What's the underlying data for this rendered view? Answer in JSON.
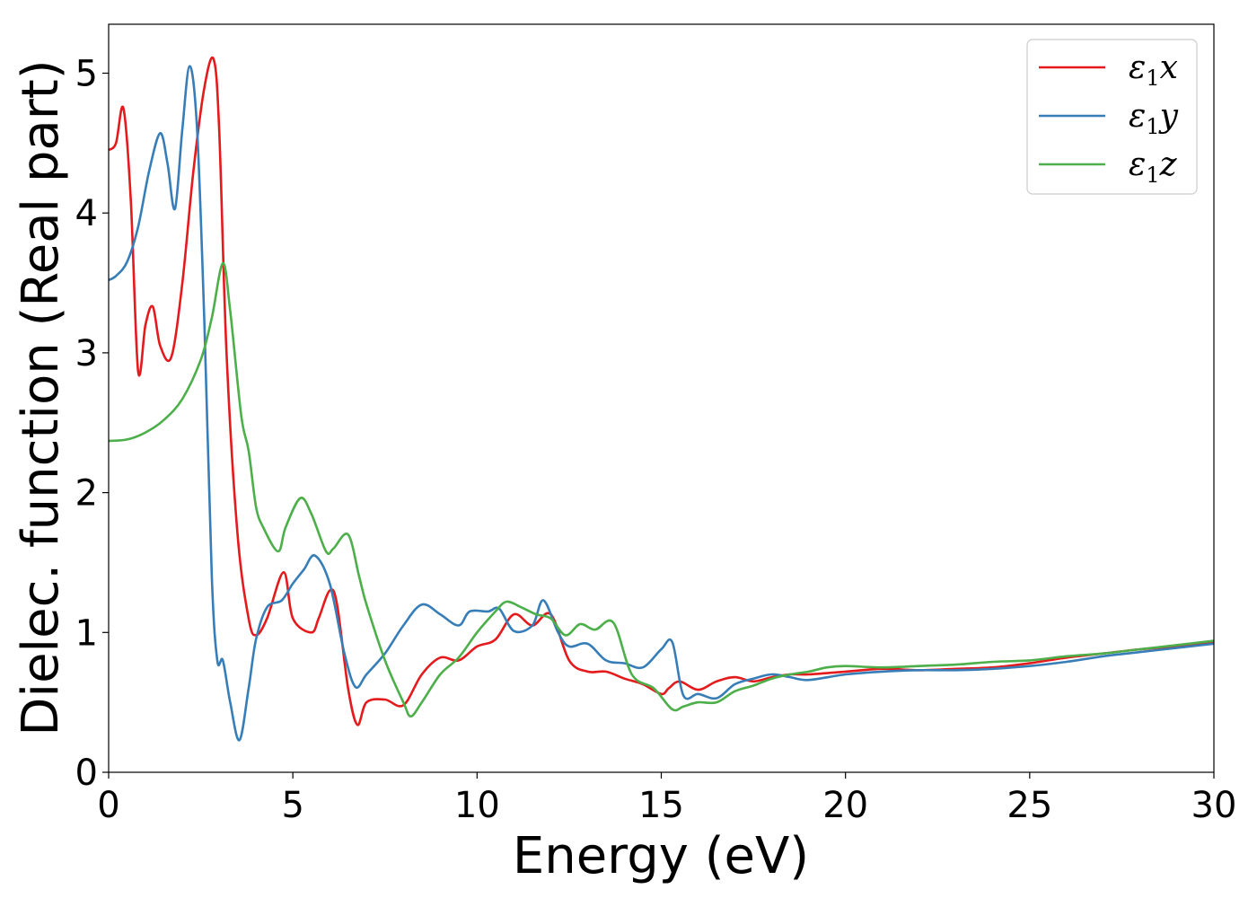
{
  "chart_data": {
    "type": "line",
    "title": "",
    "xlabel": "Energy (eV)",
    "ylabel": "Dielec. function (Real part)",
    "xlim": [
      0,
      30
    ],
    "ylim": [
      0,
      5.35
    ],
    "xticks": [
      0,
      5,
      10,
      15,
      20,
      25,
      30
    ],
    "yticks": [
      0,
      1,
      2,
      3,
      4,
      5
    ],
    "grid": false,
    "legend_position": "top-right",
    "series": [
      {
        "name": "ε₁x",
        "legend_base": "ε",
        "legend_sub": "1",
        "legend_var": "x",
        "color": "#e41a1c",
        "x": [
          0,
          0.2,
          0.4,
          0.6,
          0.8,
          1.0,
          1.2,
          1.4,
          1.7,
          2.0,
          2.3,
          2.6,
          2.85,
          3.0,
          3.2,
          3.5,
          3.8,
          4.0,
          4.3,
          4.75,
          5.0,
          5.5,
          5.7,
          6.0,
          6.2,
          6.5,
          6.75,
          7.0,
          7.5,
          8.0,
          8.5,
          9.0,
          9.5,
          10.0,
          10.5,
          11.0,
          11.5,
          12.0,
          12.5,
          13.0,
          13.5,
          14.0,
          14.5,
          15.0,
          15.2,
          15.5,
          16.0,
          16.5,
          17.0,
          17.5,
          18.0,
          18.5,
          19.0,
          20.0,
          21.0,
          22.0,
          23.0,
          24.0,
          25.0,
          26.0,
          27.0,
          28.0,
          29.0,
          30.0
        ],
        "y": [
          4.45,
          4.5,
          4.75,
          4.1,
          2.87,
          3.2,
          3.33,
          3.05,
          2.97,
          3.5,
          4.3,
          4.9,
          5.1,
          4.6,
          3.0,
          1.7,
          1.1,
          0.98,
          1.1,
          1.43,
          1.1,
          1.0,
          1.1,
          1.3,
          1.2,
          0.6,
          0.34,
          0.5,
          0.52,
          0.48,
          0.7,
          0.82,
          0.8,
          0.9,
          0.95,
          1.13,
          1.05,
          1.13,
          0.8,
          0.72,
          0.72,
          0.67,
          0.63,
          0.56,
          0.6,
          0.65,
          0.59,
          0.65,
          0.68,
          0.65,
          0.68,
          0.7,
          0.7,
          0.72,
          0.74,
          0.73,
          0.74,
          0.75,
          0.78,
          0.82,
          0.85,
          0.88,
          0.9,
          0.93
        ]
      },
      {
        "name": "ε₁y",
        "legend_base": "ε",
        "legend_sub": "1",
        "legend_var": "y",
        "color": "#377eb8",
        "x": [
          0,
          0.2,
          0.5,
          0.8,
          1.1,
          1.4,
          1.6,
          1.8,
          2.0,
          2.2,
          2.4,
          2.6,
          2.8,
          2.95,
          3.1,
          3.3,
          3.55,
          3.8,
          4.0,
          4.3,
          4.7,
          5.0,
          5.3,
          5.6,
          6.0,
          6.4,
          6.7,
          7.0,
          7.5,
          8.0,
          8.5,
          9.0,
          9.5,
          9.8,
          10.3,
          10.6,
          11.0,
          11.5,
          11.8,
          12.2,
          12.5,
          13.0,
          13.5,
          14.0,
          14.5,
          15.0,
          15.3,
          15.6,
          16.0,
          16.5,
          17.0,
          17.5,
          18.0,
          18.5,
          19.0,
          20.0,
          21.0,
          22.0,
          23.0,
          24.0,
          25.0,
          26.0,
          27.0,
          28.0,
          29.0,
          30.0
        ],
        "y": [
          3.52,
          3.55,
          3.65,
          3.9,
          4.3,
          4.57,
          4.35,
          4.03,
          4.6,
          5.05,
          4.6,
          3.2,
          1.4,
          0.8,
          0.8,
          0.5,
          0.23,
          0.6,
          0.95,
          1.18,
          1.23,
          1.35,
          1.45,
          1.55,
          1.35,
          0.85,
          0.61,
          0.7,
          0.85,
          1.05,
          1.2,
          1.13,
          1.05,
          1.15,
          1.15,
          1.17,
          1.01,
          1.05,
          1.23,
          1.0,
          0.9,
          0.92,
          0.8,
          0.78,
          0.75,
          0.88,
          0.93,
          0.55,
          0.56,
          0.53,
          0.63,
          0.67,
          0.7,
          0.68,
          0.66,
          0.7,
          0.72,
          0.73,
          0.73,
          0.74,
          0.76,
          0.79,
          0.83,
          0.86,
          0.89,
          0.92
        ]
      },
      {
        "name": "ε₁z",
        "legend_base": "ε",
        "legend_sub": "1",
        "legend_var": "z",
        "color": "#4daf4a",
        "x": [
          0,
          0.5,
          1.0,
          1.5,
          2.0,
          2.5,
          2.8,
          3.1,
          3.3,
          3.6,
          3.8,
          4.0,
          4.2,
          4.6,
          4.8,
          5.2,
          5.5,
          5.9,
          6.1,
          6.5,
          6.8,
          7.0,
          7.5,
          8.0,
          8.2,
          8.5,
          9.0,
          9.5,
          10.0,
          10.5,
          10.8,
          11.2,
          11.6,
          12.0,
          12.4,
          12.8,
          13.2,
          13.7,
          14.2,
          14.8,
          15.3,
          15.6,
          16.0,
          16.5,
          17.0,
          17.5,
          18.0,
          18.5,
          19.0,
          19.5,
          20.0,
          21.0,
          22.0,
          23.0,
          24.0,
          25.0,
          26.0,
          27.0,
          28.0,
          29.0,
          30.0
        ],
        "y": [
          2.37,
          2.38,
          2.43,
          2.52,
          2.67,
          2.95,
          3.25,
          3.64,
          3.3,
          2.55,
          2.3,
          1.9,
          1.75,
          1.58,
          1.75,
          1.96,
          1.85,
          1.58,
          1.6,
          1.7,
          1.4,
          1.2,
          0.8,
          0.5,
          0.4,
          0.5,
          0.7,
          0.82,
          1.0,
          1.15,
          1.22,
          1.18,
          1.13,
          1.1,
          0.98,
          1.06,
          1.02,
          1.07,
          0.7,
          0.6,
          0.45,
          0.47,
          0.5,
          0.5,
          0.58,
          0.62,
          0.67,
          0.7,
          0.72,
          0.75,
          0.76,
          0.75,
          0.76,
          0.77,
          0.79,
          0.8,
          0.83,
          0.85,
          0.88,
          0.91,
          0.94
        ]
      }
    ]
  }
}
